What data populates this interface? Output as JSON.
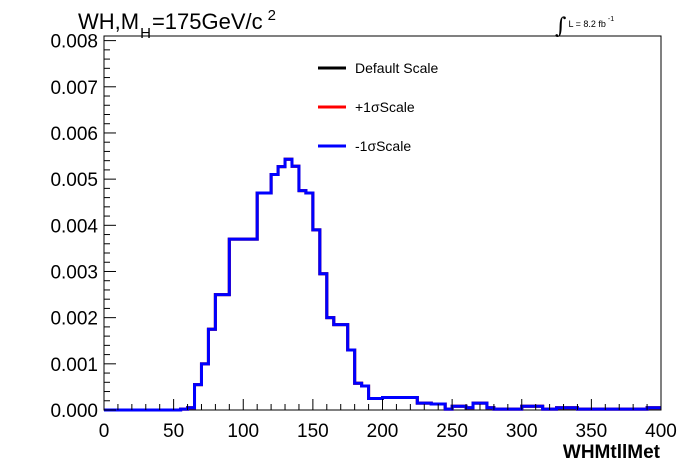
{
  "title": {
    "main": "WH,M",
    "sub": "H",
    "rest": "=175GeV/c",
    "sup": "2"
  },
  "lumi": {
    "symbol": "∫",
    "text": "L = 8.2 fb",
    "sup": "-1"
  },
  "chart_data": {
    "type": "line",
    "subtype": "step-histogram",
    "xlabel": "WHMtllMet",
    "ylabel": "",
    "xlim": [
      0,
      400
    ],
    "ylim": [
      0,
      0.0081
    ],
    "xticks": [
      0,
      50,
      100,
      150,
      200,
      250,
      300,
      350,
      400
    ],
    "xtick_labels": [
      "0",
      "50",
      "100",
      "150",
      "200",
      "250",
      "300",
      "350",
      "400"
    ],
    "yticks": [
      0.0,
      0.001,
      0.002,
      0.003,
      0.004,
      0.005,
      0.006,
      0.007,
      0.008
    ],
    "ytick_labels": [
      "0.000",
      "0.001",
      "0.002",
      "0.003",
      "0.004",
      "0.005",
      "0.006",
      "0.007",
      "0.008"
    ],
    "bin_edges": [
      0,
      10,
      20,
      30,
      40,
      50,
      55,
      60,
      65,
      70,
      75,
      80,
      85,
      90,
      95,
      100,
      105,
      110,
      115,
      120,
      125,
      130,
      135,
      140,
      145,
      150,
      155,
      160,
      165,
      170,
      175,
      180,
      185,
      190,
      195,
      200,
      205,
      210,
      215,
      220,
      225,
      230,
      235,
      240,
      245,
      250,
      255,
      260,
      265,
      270,
      275,
      280,
      285,
      290,
      295,
      300,
      305,
      310,
      315,
      320,
      325,
      330,
      335,
      340,
      345,
      350,
      355,
      360,
      365,
      370,
      375,
      380,
      385,
      390,
      395,
      400
    ],
    "series": [
      {
        "name": "Default Scale",
        "color": "#000000",
        "values": [
          0,
          0,
          0,
          0,
          0,
          0,
          2e-05,
          5e-05,
          0.00055,
          0.001,
          0.00175,
          0.0025,
          0.0025,
          0.0037,
          0.0037,
          0.0037,
          0.0037,
          0.0047,
          0.0047,
          0.0051,
          0.00527,
          0.00543,
          0.00528,
          0.00475,
          0.0047,
          0.0039,
          0.00295,
          0.002,
          0.00185,
          0.00185,
          0.0013,
          0.00058,
          0.00052,
          0.00025,
          0.00025,
          0.00027,
          0.00027,
          0.00027,
          0.00027,
          0.00027,
          0.00015,
          0.00015,
          0.00013,
          0.00013,
          2e-05,
          8e-05,
          8e-05,
          5e-05,
          0.00015,
          0.00015,
          5e-05,
          2e-05,
          2e-05,
          2e-05,
          2e-05,
          8e-05,
          8e-05,
          8e-05,
          2e-05,
          2e-05,
          5e-05,
          5e-05,
          5e-05,
          2e-05,
          2e-05,
          2e-05,
          2e-05,
          2e-05,
          2e-05,
          2e-05,
          2e-05,
          2e-05,
          2e-05,
          5e-05,
          5e-05
        ]
      },
      {
        "name": "+1σScale",
        "color": "#ff0000",
        "values": [
          0,
          0,
          0,
          0,
          0,
          0,
          2e-05,
          5e-05,
          0.00055,
          0.001,
          0.00175,
          0.0025,
          0.0025,
          0.0037,
          0.0037,
          0.0037,
          0.0037,
          0.0047,
          0.0047,
          0.0051,
          0.00527,
          0.00543,
          0.00528,
          0.00475,
          0.0047,
          0.0039,
          0.00295,
          0.002,
          0.00185,
          0.00185,
          0.0013,
          0.00058,
          0.00052,
          0.00025,
          0.00025,
          0.00027,
          0.00027,
          0.00027,
          0.00027,
          0.00027,
          0.00015,
          0.00015,
          0.00013,
          0.00013,
          2e-05,
          8e-05,
          8e-05,
          5e-05,
          0.00015,
          0.00015,
          5e-05,
          2e-05,
          2e-05,
          2e-05,
          2e-05,
          8e-05,
          8e-05,
          8e-05,
          2e-05,
          2e-05,
          5e-05,
          5e-05,
          5e-05,
          2e-05,
          2e-05,
          2e-05,
          2e-05,
          2e-05,
          2e-05,
          2e-05,
          2e-05,
          2e-05,
          2e-05,
          5e-05,
          5e-05
        ]
      },
      {
        "name": "-1σScale",
        "color": "#0000ff",
        "values": [
          0,
          0,
          0,
          0,
          0,
          0,
          2e-05,
          5e-05,
          0.00055,
          0.001,
          0.00175,
          0.0025,
          0.0025,
          0.0037,
          0.0037,
          0.0037,
          0.0037,
          0.0047,
          0.0047,
          0.0051,
          0.00527,
          0.00543,
          0.00528,
          0.00475,
          0.0047,
          0.0039,
          0.00295,
          0.002,
          0.00185,
          0.00185,
          0.0013,
          0.00058,
          0.00052,
          0.00025,
          0.00025,
          0.00027,
          0.00027,
          0.00027,
          0.00027,
          0.00027,
          0.00015,
          0.00015,
          0.00013,
          0.00013,
          2e-05,
          8e-05,
          8e-05,
          5e-05,
          0.00015,
          0.00015,
          5e-05,
          2e-05,
          2e-05,
          2e-05,
          2e-05,
          8e-05,
          8e-05,
          8e-05,
          2e-05,
          2e-05,
          5e-05,
          5e-05,
          5e-05,
          2e-05,
          2e-05,
          2e-05,
          2e-05,
          2e-05,
          2e-05,
          2e-05,
          2e-05,
          2e-05,
          2e-05,
          5e-05,
          5e-05
        ]
      }
    ],
    "legend": {
      "position": "top-center",
      "entries": [
        "Default Scale",
        "+1σScale",
        "-1σScale"
      ]
    },
    "grid": false
  }
}
